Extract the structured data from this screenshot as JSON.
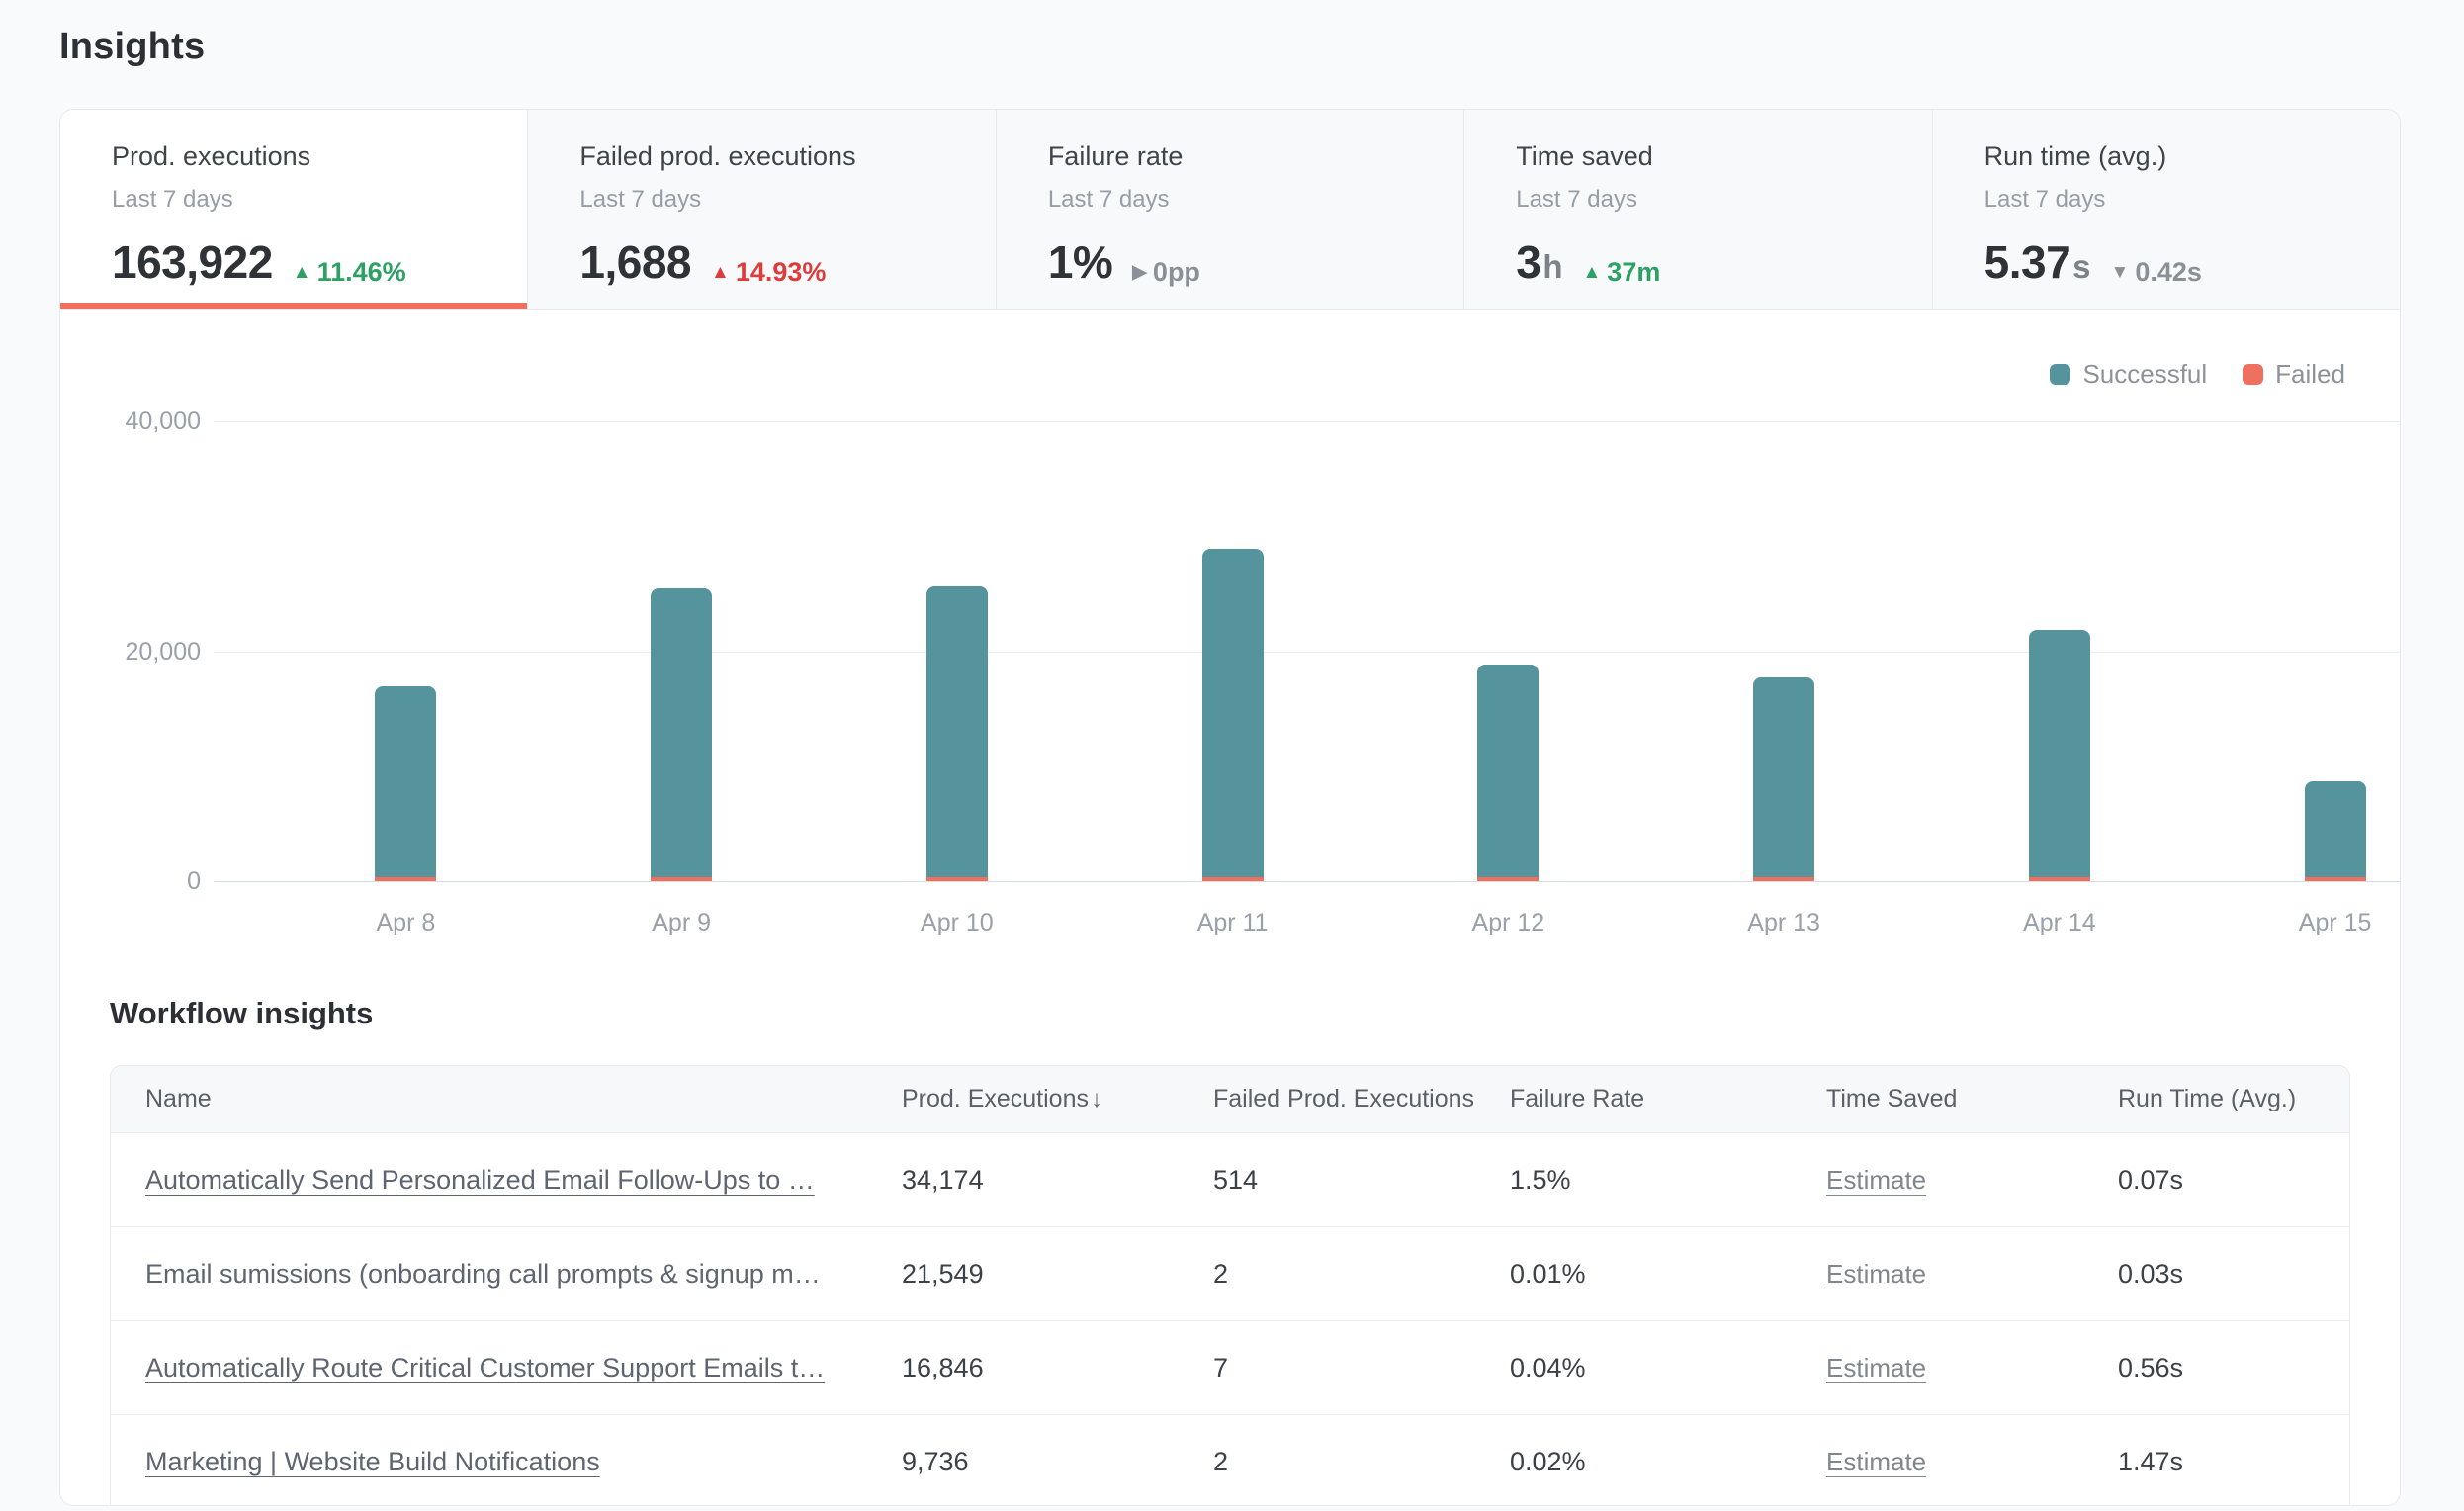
{
  "page": {
    "title": "Insights"
  },
  "stat_cards": [
    {
      "id": "prod-executions",
      "title": "Prod. executions",
      "period": "Last 7 days",
      "value": "163,922",
      "unit": "",
      "delta_icon": "up",
      "delta_text": "11.46%",
      "tone": "positive",
      "selected": true
    },
    {
      "id": "failed-prod-executions",
      "title": "Failed prod. executions",
      "period": "Last 7 days",
      "value": "1,688",
      "unit": "",
      "delta_icon": "up",
      "delta_text": "14.93%",
      "tone": "negative",
      "selected": false
    },
    {
      "id": "failure-rate",
      "title": "Failure rate",
      "period": "Last 7 days",
      "value": "1%",
      "unit": "",
      "delta_icon": "right",
      "delta_text": "0pp",
      "tone": "neutral",
      "selected": false
    },
    {
      "id": "time-saved",
      "title": "Time saved",
      "period": "Last 7 days",
      "value": "3",
      "unit": "h",
      "delta_icon": "up",
      "delta_text": "37m",
      "tone": "positive",
      "selected": false
    },
    {
      "id": "run-time-avg",
      "title": "Run time (avg.)",
      "period": "Last 7 days",
      "value": "5.37",
      "unit": "s",
      "delta_icon": "down",
      "delta_text": "0.42s",
      "tone": "neutral",
      "selected": false
    }
  ],
  "chart_data": {
    "type": "bar",
    "stacked": true,
    "categories": [
      "Apr 8",
      "Apr 9",
      "Apr 10",
      "Apr 11",
      "Apr 12",
      "Apr 13",
      "Apr 14",
      "Apr 15"
    ],
    "series": [
      {
        "name": "Failed",
        "color": "#f0705f",
        "values": [
          210,
          250,
          250,
          260,
          220,
          200,
          200,
          100
        ]
      },
      {
        "name": "Successful",
        "color": "#55949c",
        "values": [
          16600,
          25150,
          25300,
          28600,
          18500,
          17400,
          21500,
          8350
        ]
      }
    ],
    "legend": [
      {
        "name": "Successful",
        "color": "#55949c"
      },
      {
        "name": "Failed",
        "color": "#f0705f"
      }
    ],
    "title": "",
    "xlabel": "",
    "ylabel": "",
    "ylim": [
      0,
      40000
    ],
    "yticks": [
      {
        "value": 0,
        "label": "0"
      },
      {
        "value": 20000,
        "label": "20,000"
      },
      {
        "value": 40000,
        "label": "40,000"
      }
    ],
    "grid": true,
    "legend_position": "top-right"
  },
  "workflow_insights": {
    "heading": "Workflow insights",
    "columns": [
      {
        "label": "Name",
        "sort": null
      },
      {
        "label": "Prod. Executions",
        "sort": "desc"
      },
      {
        "label": "Failed Prod. Executions",
        "sort": null
      },
      {
        "label": "Failure Rate",
        "sort": null
      },
      {
        "label": "Time Saved",
        "sort": null
      },
      {
        "label": "Run Time (Avg.)",
        "sort": null
      }
    ],
    "rows": [
      {
        "name": "Automatically Send Personalized Email Follow-Ups to …",
        "prod_executions": "34,174",
        "failed_prod_executions": "514",
        "failure_rate": "1.5%",
        "time_saved": "Estimate",
        "run_time_avg": "0.07s"
      },
      {
        "name": "Email sumissions (onboarding call prompts & signup m…",
        "prod_executions": "21,549",
        "failed_prod_executions": "2",
        "failure_rate": "0.01%",
        "time_saved": "Estimate",
        "run_time_avg": "0.03s"
      },
      {
        "name": "Automatically Route Critical Customer Support Emails t…",
        "prod_executions": "16,846",
        "failed_prod_executions": "7",
        "failure_rate": "0.04%",
        "time_saved": "Estimate",
        "run_time_avg": "0.56s"
      },
      {
        "name": "Marketing | Website Build Notifications",
        "prod_executions": "9,736",
        "failed_prod_executions": "2",
        "failure_rate": "0.02%",
        "time_saved": "Estimate",
        "run_time_avg": "1.47s"
      }
    ]
  }
}
